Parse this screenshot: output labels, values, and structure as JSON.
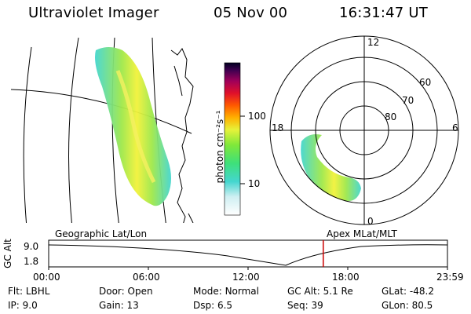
{
  "header": {
    "title": "Ultraviolet Imager",
    "date": "05 Nov 00",
    "time": "16:31:47 UT"
  },
  "colorbar": {
    "unit_label": "photon cm⁻²s⁻¹",
    "ticks": [
      "100",
      "10"
    ]
  },
  "polar": {
    "mlt_labels": {
      "top": "12",
      "left": "18",
      "right": "6",
      "bottom": "0"
    },
    "lat_labels": [
      "60",
      "70",
      "80"
    ]
  },
  "panel_labels": {
    "left": "Geographic Lat/Lon",
    "right": "Apex MLat/MLT"
  },
  "altitude_plot": {
    "ylabel": "GC Alt",
    "yticks": [
      "9.0",
      "1.8"
    ],
    "xticks": [
      "00:00",
      "06:00",
      "12:00",
      "18:00",
      "23:59"
    ],
    "current_time_fraction": 0.6886
  },
  "footer": {
    "col1": [
      {
        "label": "Flt:",
        "value": "LBHL"
      },
      {
        "label": "IP:",
        "value": "9.0"
      }
    ],
    "col2": [
      {
        "label": "Door:",
        "value": "Open"
      },
      {
        "label": "Gain:",
        "value": "13"
      }
    ],
    "col3": [
      {
        "label": "Mode:",
        "value": "Normal"
      },
      {
        "label": "Dsp:",
        "value": "6.5"
      }
    ],
    "col4": [
      {
        "label": "GC Alt:",
        "value": "5.1 Re"
      },
      {
        "label": "Seq:",
        "value": "39"
      }
    ],
    "col5": [
      {
        "label": "GLat:",
        "value": "-48.2"
      },
      {
        "label": "GLon:",
        "value": "80.5"
      }
    ]
  },
  "colors": {
    "cursor": "#cc0000"
  }
}
